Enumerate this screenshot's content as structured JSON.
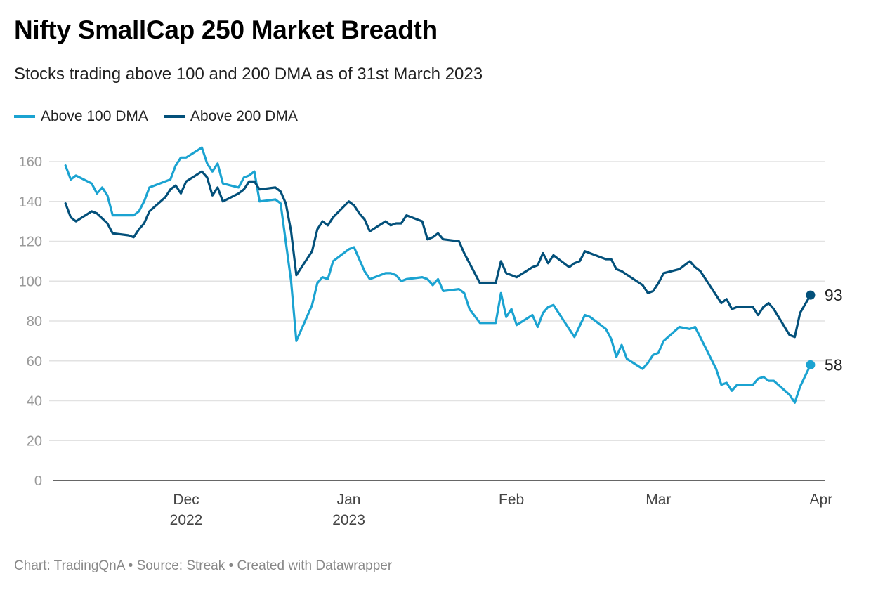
{
  "title": "Nifty SmallCap 250 Market Breadth",
  "subtitle": "Stocks trading above 100 and 200 DMA as of 31st March 2023",
  "footer": "Chart: TradingQnA • Source: Streak • Created with Datawrapper",
  "chart_data": {
    "type": "line",
    "title": "Nifty SmallCap 250 Market Breadth",
    "subtitle": "Stocks trading above 100 and 200 DMA as of 31st March 2023",
    "x_unit": "days since 2022-12-01",
    "xlim": [
      -24,
      122
    ],
    "ylim": [
      0,
      170
    ],
    "grid": true,
    "legend_position": "top-left",
    "xlabel": "",
    "ylabel": "",
    "y_ticks": [
      0,
      20,
      40,
      60,
      80,
      100,
      120,
      140,
      160
    ],
    "x_ticks": [
      {
        "day": 0,
        "label": "Dec",
        "sublabel": "2022"
      },
      {
        "day": 31,
        "label": "Jan",
        "sublabel": "2023"
      },
      {
        "day": 62,
        "label": "Feb",
        "sublabel": ""
      },
      {
        "day": 90,
        "label": "Mar",
        "sublabel": ""
      },
      {
        "day": 121,
        "label": "Apr",
        "sublabel": ""
      }
    ],
    "series": [
      {
        "name": "Above 100 DMA",
        "color": "#1ba3d1",
        "end_label": "58",
        "points": [
          [
            -23,
            158
          ],
          [
            -22,
            151
          ],
          [
            -21,
            153
          ],
          [
            -18,
            149
          ],
          [
            -17,
            144
          ],
          [
            -16,
            147
          ],
          [
            -15,
            143
          ],
          [
            -14,
            133
          ],
          [
            -10,
            133
          ],
          [
            -9,
            135
          ],
          [
            -8,
            140
          ],
          [
            -7,
            147
          ],
          [
            -3,
            151
          ],
          [
            -2,
            158
          ],
          [
            -1,
            162
          ],
          [
            0,
            162
          ],
          [
            3,
            167
          ],
          [
            4,
            159
          ],
          [
            5,
            155
          ],
          [
            6,
            159
          ],
          [
            7,
            149
          ],
          [
            10,
            147
          ],
          [
            11,
            152
          ],
          [
            12,
            153
          ],
          [
            13,
            155
          ],
          [
            14,
            140
          ],
          [
            17,
            141
          ],
          [
            18,
            139
          ],
          [
            20,
            100
          ],
          [
            21,
            70
          ],
          [
            24,
            88
          ],
          [
            25,
            99
          ],
          [
            26,
            102
          ],
          [
            27,
            101
          ],
          [
            28,
            110
          ],
          [
            31,
            116
          ],
          [
            32,
            117
          ],
          [
            34,
            105
          ],
          [
            35,
            101
          ],
          [
            38,
            104
          ],
          [
            39,
            104
          ],
          [
            40,
            103
          ],
          [
            41,
            100
          ],
          [
            42,
            101
          ],
          [
            45,
            102
          ],
          [
            46,
            101
          ],
          [
            47,
            98
          ],
          [
            48,
            101
          ],
          [
            49,
            95
          ],
          [
            52,
            96
          ],
          [
            53,
            94
          ],
          [
            54,
            86
          ],
          [
            56,
            79
          ],
          [
            59,
            79
          ],
          [
            60,
            94
          ],
          [
            61,
            82
          ],
          [
            62,
            86
          ],
          [
            63,
            78
          ],
          [
            66,
            83
          ],
          [
            67,
            77
          ],
          [
            68,
            84
          ],
          [
            69,
            87
          ],
          [
            70,
            88
          ],
          [
            74,
            72
          ],
          [
            76,
            83
          ],
          [
            77,
            82
          ],
          [
            80,
            76
          ],
          [
            81,
            71
          ],
          [
            82,
            62
          ],
          [
            83,
            68
          ],
          [
            84,
            61
          ],
          [
            87,
            56
          ],
          [
            88,
            59
          ],
          [
            89,
            63
          ],
          [
            90,
            64
          ],
          [
            91,
            70
          ],
          [
            94,
            77
          ],
          [
            96,
            76
          ],
          [
            97,
            77
          ],
          [
            101,
            56
          ],
          [
            102,
            48
          ],
          [
            103,
            49
          ],
          [
            104,
            45
          ],
          [
            105,
            48
          ],
          [
            108,
            48
          ],
          [
            109,
            51
          ],
          [
            110,
            52
          ],
          [
            111,
            50
          ],
          [
            112,
            50
          ],
          [
            115,
            43
          ],
          [
            116,
            39
          ],
          [
            117,
            47
          ],
          [
            119,
            58
          ]
        ]
      },
      {
        "name": "Above 200 DMA",
        "color": "#03507a",
        "end_label": "93",
        "points": [
          [
            -23,
            139
          ],
          [
            -22,
            132
          ],
          [
            -21,
            130
          ],
          [
            -18,
            135
          ],
          [
            -17,
            134
          ],
          [
            -15,
            129
          ],
          [
            -14,
            124
          ],
          [
            -11,
            123
          ],
          [
            -10,
            122
          ],
          [
            -9,
            126
          ],
          [
            -8,
            129
          ],
          [
            -7,
            135
          ],
          [
            -4,
            142
          ],
          [
            -3,
            146
          ],
          [
            -2,
            148
          ],
          [
            -1,
            144
          ],
          [
            0,
            150
          ],
          [
            3,
            155
          ],
          [
            4,
            152
          ],
          [
            5,
            143
          ],
          [
            6,
            147
          ],
          [
            7,
            140
          ],
          [
            10,
            144
          ],
          [
            11,
            146
          ],
          [
            12,
            150
          ],
          [
            13,
            150
          ],
          [
            14,
            146
          ],
          [
            17,
            147
          ],
          [
            18,
            145
          ],
          [
            19,
            139
          ],
          [
            20,
            125
          ],
          [
            21,
            103
          ],
          [
            24,
            115
          ],
          [
            25,
            126
          ],
          [
            26,
            130
          ],
          [
            27,
            128
          ],
          [
            28,
            132
          ],
          [
            31,
            140
          ],
          [
            32,
            138
          ],
          [
            33,
            134
          ],
          [
            34,
            131
          ],
          [
            35,
            125
          ],
          [
            38,
            130
          ],
          [
            39,
            128
          ],
          [
            40,
            129
          ],
          [
            41,
            129
          ],
          [
            42,
            133
          ],
          [
            45,
            130
          ],
          [
            46,
            121
          ],
          [
            47,
            122
          ],
          [
            48,
            124
          ],
          [
            49,
            121
          ],
          [
            52,
            120
          ],
          [
            53,
            114
          ],
          [
            56,
            99
          ],
          [
            59,
            99
          ],
          [
            60,
            110
          ],
          [
            61,
            104
          ],
          [
            63,
            102
          ],
          [
            66,
            107
          ],
          [
            67,
            108
          ],
          [
            68,
            114
          ],
          [
            69,
            109
          ],
          [
            70,
            113
          ],
          [
            73,
            107
          ],
          [
            74,
            109
          ],
          [
            75,
            110
          ],
          [
            76,
            115
          ],
          [
            79,
            112
          ],
          [
            80,
            111
          ],
          [
            81,
            111
          ],
          [
            82,
            106
          ],
          [
            83,
            105
          ],
          [
            87,
            98
          ],
          [
            88,
            94
          ],
          [
            89,
            95
          ],
          [
            90,
            99
          ],
          [
            91,
            104
          ],
          [
            94,
            106
          ],
          [
            96,
            110
          ],
          [
            97,
            107
          ],
          [
            98,
            105
          ],
          [
            102,
            89
          ],
          [
            103,
            91
          ],
          [
            104,
            86
          ],
          [
            105,
            87
          ],
          [
            108,
            87
          ],
          [
            109,
            83
          ],
          [
            110,
            87
          ],
          [
            111,
            89
          ],
          [
            112,
            86
          ],
          [
            115,
            73
          ],
          [
            116,
            72
          ],
          [
            117,
            84
          ],
          [
            119,
            93
          ]
        ]
      }
    ]
  }
}
